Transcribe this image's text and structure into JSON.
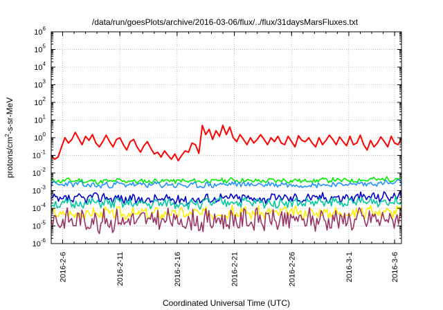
{
  "chart_data": {
    "type": "line",
    "title": "/data/run/goesPlots/archive/2016-03-06/flux/../flux/31daysMarsFluxes.txt",
    "xlabel": "Coordinated Universal Time (UTC)",
    "ylabel_parts": {
      "pre": "protons/cm",
      "sup": "2",
      "post": "-s-sr-MeV"
    },
    "yscale": "log",
    "ylim": [
      1e-06,
      1000000.0
    ],
    "xlim": [
      0,
      30.6
    ],
    "grid": true,
    "y_ticks": [
      {
        "exp": -6,
        "base": "10",
        "sup": "-6"
      },
      {
        "exp": -5,
        "base": "10",
        "sup": "-5"
      },
      {
        "exp": -4,
        "base": "10",
        "sup": "-4"
      },
      {
        "exp": -3,
        "base": "10",
        "sup": "-3"
      },
      {
        "exp": -2,
        "base": "10",
        "sup": "-2"
      },
      {
        "exp": -1,
        "base": "10",
        "sup": "-1"
      },
      {
        "exp": 0,
        "base": "10",
        "sup": "0"
      },
      {
        "exp": 1,
        "base": "10",
        "sup": "1"
      },
      {
        "exp": 2,
        "base": "10",
        "sup": "2"
      },
      {
        "exp": 3,
        "base": "10",
        "sup": "3"
      },
      {
        "exp": 4,
        "base": "10",
        "sup": "4"
      },
      {
        "exp": 5,
        "base": "10",
        "sup": "5"
      },
      {
        "exp": 6,
        "base": "10",
        "sup": "6"
      }
    ],
    "x_ticks": [
      {
        "day": 1,
        "label": "2016-2-6"
      },
      {
        "day": 6,
        "label": "2016-2-11"
      },
      {
        "day": 11,
        "label": "2016-2-16"
      },
      {
        "day": 16,
        "label": "2016-2-21"
      },
      {
        "day": 21,
        "label": "2016-2-26"
      },
      {
        "day": 26,
        "label": "2016-3-1"
      },
      {
        "day": 30,
        "label": "2016-3-6"
      }
    ],
    "series": [
      {
        "color": "#ff0000",
        "x": [
          0,
          0.3,
          0.6,
          0.9,
          1.2,
          1.5,
          1.8,
          2.1,
          2.4,
          2.7,
          3.0,
          3.3,
          3.6,
          3.9,
          4.2,
          4.5,
          4.8,
          5.1,
          5.4,
          5.7,
          6.0,
          6.3,
          6.6,
          6.9,
          7.2,
          7.5,
          7.8,
          8.1,
          8.4,
          8.7,
          9.0,
          9.3,
          9.6,
          9.9,
          10.2,
          10.5,
          10.8,
          11.1,
          11.4,
          11.7,
          12.0,
          12.3,
          12.6,
          12.9,
          13.2,
          13.5,
          13.8,
          14.1,
          14.4,
          14.7,
          15.0,
          15.3,
          15.6,
          15.9,
          16.2,
          16.5,
          16.8,
          17.1,
          17.4,
          17.7,
          18.0,
          18.3,
          18.6,
          18.9,
          19.2,
          19.5,
          19.8,
          20.1,
          20.4,
          20.7,
          21.0,
          21.3,
          21.6,
          21.9,
          22.2,
          22.5,
          22.8,
          23.1,
          23.4,
          23.7,
          24.0,
          24.3,
          24.6,
          24.9,
          25.2,
          25.5,
          25.8,
          26.1,
          26.4,
          26.7,
          27.0,
          27.3,
          27.6,
          27.9,
          28.2,
          28.5,
          28.8,
          29.1,
          29.4,
          29.7,
          30.0,
          30.3,
          30.6
        ],
        "values": [
          0.1,
          0.06,
          0.08,
          0.3,
          1.0,
          0.5,
          0.8,
          2.0,
          0.9,
          0.4,
          1.2,
          0.7,
          1.5,
          0.5,
          0.3,
          0.6,
          1.4,
          0.6,
          0.3,
          0.8,
          1.0,
          0.4,
          0.2,
          0.6,
          0.8,
          0.3,
          0.15,
          0.35,
          0.6,
          0.25,
          0.12,
          0.15,
          0.08,
          0.18,
          0.1,
          0.06,
          0.12,
          0.05,
          0.1,
          0.18,
          0.15,
          0.5,
          0.4,
          0.13,
          5.0,
          1.5,
          3.0,
          0.8,
          2.5,
          1.2,
          5.0,
          1.5,
          4.0,
          1.0,
          0.6,
          1.5,
          0.8,
          0.4,
          1.0,
          0.5,
          0.8,
          1.5,
          0.8,
          0.4,
          1.0,
          0.6,
          1.2,
          0.5,
          0.4,
          1.2,
          0.6,
          0.3,
          1.3,
          0.7,
          0.6,
          1.0,
          0.5,
          0.3,
          1.0,
          0.4,
          0.7,
          1.4,
          0.8,
          0.4,
          1.1,
          0.6,
          0.35,
          1.2,
          0.4,
          0.5,
          1.4,
          0.4,
          0.2,
          0.7,
          0.3,
          0.5,
          1.1,
          0.6,
          0.3,
          1.2,
          0.5,
          0.4,
          0.9
        ]
      },
      {
        "color": "#00ee00",
        "x": [
          0,
          2,
          4,
          6,
          8,
          10,
          12,
          14,
          16,
          18,
          20,
          22,
          24,
          26,
          28,
          30.6
        ],
        "values": [
          0.0035,
          0.0038,
          0.0032,
          0.0036,
          0.0033,
          0.0037,
          0.0034,
          0.0036,
          0.004,
          0.0035,
          0.0038,
          0.0036,
          0.004,
          0.0038,
          0.0042,
          0.0048
        ],
        "noise": 0.12,
        "seed": 11
      },
      {
        "color": "#1e90ff",
        "x": [
          0,
          2,
          4,
          6,
          8,
          10,
          12,
          14,
          16,
          18,
          20,
          22,
          24,
          26,
          28,
          30.6
        ],
        "values": [
          0.0022,
          0.0024,
          0.0019,
          0.0023,
          0.0021,
          0.0022,
          0.0019,
          0.0021,
          0.0024,
          0.0022,
          0.0023,
          0.0021,
          0.0022,
          0.0023,
          0.0025,
          0.0028
        ],
        "noise": 0.15,
        "seed": 23
      },
      {
        "color": "#0000cc",
        "x": [
          0,
          2,
          4,
          6,
          8,
          10,
          12,
          14,
          16,
          18,
          20,
          22,
          24,
          26,
          28,
          30.6
        ],
        "values": [
          0.0003,
          0.00032,
          0.00045,
          0.00035,
          0.0003,
          0.00033,
          0.0003,
          0.00036,
          0.00042,
          0.00035,
          0.0004,
          0.00037,
          0.00042,
          0.0004,
          0.00045,
          0.0005
        ],
        "noise": 0.25,
        "seed": 37
      },
      {
        "color": "#00c8a0",
        "x": [
          0,
          2,
          4,
          6,
          8,
          10,
          12,
          14,
          16,
          18,
          20,
          22,
          24,
          26,
          28,
          30.6
        ],
        "values": [
          0.00016,
          0.00018,
          0.0002,
          0.00019,
          0.00017,
          0.00019,
          0.00018,
          0.0002,
          0.00023,
          0.0002,
          0.00021,
          0.0002,
          0.00022,
          0.00021,
          0.00024,
          0.00026
        ],
        "noise": 0.25,
        "seed": 51
      },
      {
        "color": "#ffee00",
        "x": [
          0,
          2,
          4,
          6,
          8,
          10,
          12,
          14,
          16,
          18,
          20,
          22,
          24,
          26,
          28,
          30.6
        ],
        "values": [
          5e-05,
          5.2e-05,
          5e-05,
          5.5e-05,
          5e-05,
          5.3e-05,
          5e-05,
          5.5e-05,
          6e-05,
          5.5e-05,
          5.8e-05,
          5.6e-05,
          6e-05,
          5.8e-05,
          6.2e-05,
          6.5e-05
        ],
        "noise": 0.3,
        "seed": 67
      },
      {
        "color": "#993366",
        "x": [
          0,
          2,
          4,
          6,
          8,
          10,
          12,
          14,
          16,
          18,
          20,
          22,
          24,
          26,
          28,
          30.6
        ],
        "values": [
          2e-05,
          2.2e-05,
          2e-05,
          2.1e-05,
          2e-05,
          2.1e-05,
          1.9e-05,
          2e-05,
          2.4e-05,
          2.1e-05,
          2.2e-05,
          2.1e-05,
          2.3e-05,
          2.2e-05,
          2.4e-05,
          2.5e-05
        ],
        "noise": 0.55,
        "seed": 83
      }
    ]
  }
}
